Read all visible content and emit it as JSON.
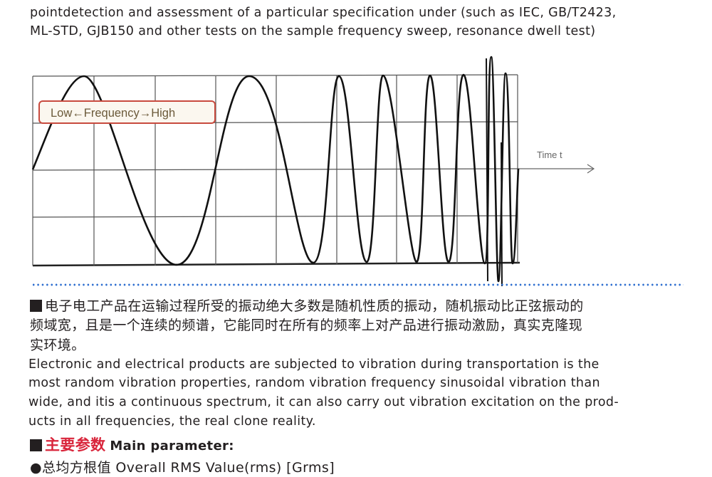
{
  "intro": {
    "lines": [
      "pointdetection and assessment of a particular specification under (such as IEC, GB/T2423,",
      "ML-STD, GJB150 and other tests on the sample frequency sweep, resonance dwell test)"
    ]
  },
  "diagram": {
    "legend_label": "Low←Frequency→High",
    "axis_label": "Time t"
  },
  "random_section": {
    "cn_lines": [
      "电子电工产品在运输过程所受的振动绝大多数是随机性质的振动，随机振动比正弦振动的",
      "频域宽，且是一个连续的频谱，它能同时在所有的频率上对产品进行振动激励，真实克隆现",
      "实环境。"
    ],
    "en_lines": [
      "Electronic and electrical products are subjected to vibration during transportation is the",
      "most random vibration properties, random vibration frequency sinusoidal vibration than",
      "wide, and itis a continuous spectrum, it can also carry out vibration excitation on the prod-",
      "ucts in all frequencies, the real clone reality."
    ]
  },
  "main_parameter": {
    "title_cn": "主要参数",
    "title_en": "Main parameter:",
    "first_item": "●总均方根值 Overall RMS Value(rms) [Grms]"
  },
  "colors": {
    "accent_red": "#d9253b",
    "divider_blue": "#2f6fd0"
  }
}
